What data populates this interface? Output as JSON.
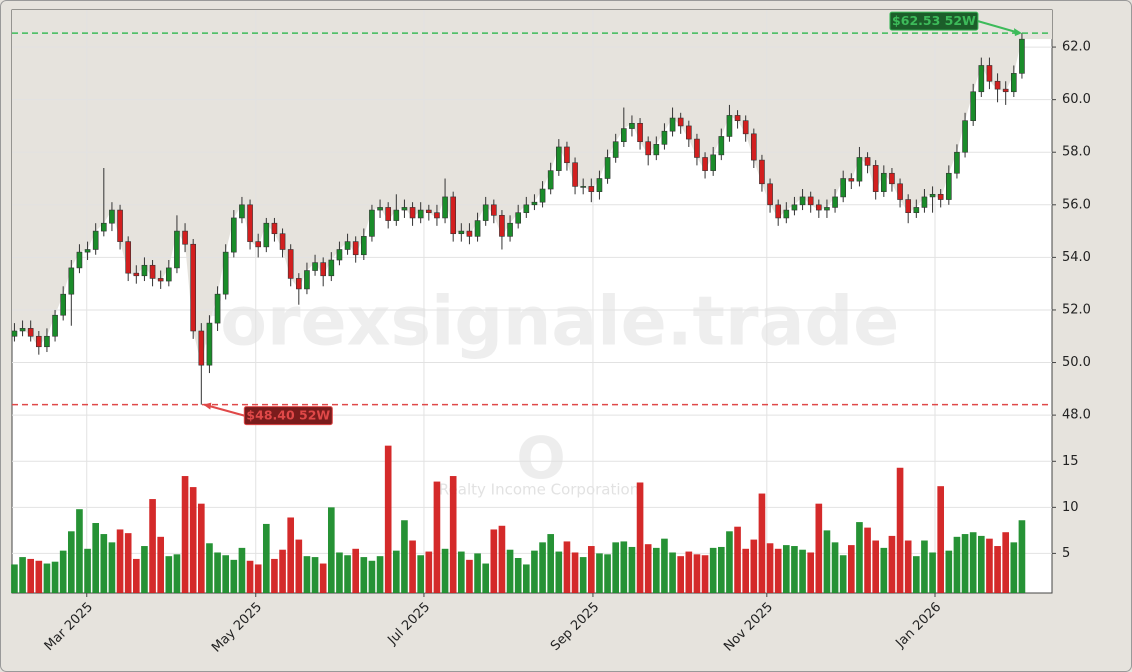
{
  "chart_data": {
    "type": "candlestick",
    "watermark": "forexsignale.trade",
    "ticker": "O",
    "company": "Realty Income Corporation",
    "up_color": "#1a8c2a",
    "down_color": "#d21f1f",
    "open": [
      51.0,
      51.2,
      51.3,
      51.0,
      50.6,
      51.0,
      51.8,
      52.6,
      53.6,
      54.2,
      54.3,
      55.0,
      55.3,
      55.8,
      54.6,
      53.4,
      53.3,
      53.7,
      53.2,
      53.1,
      53.6,
      55.0,
      54.5,
      51.2,
      49.9,
      51.5,
      52.6,
      54.2,
      55.5,
      56.0,
      54.6,
      54.4,
      55.3,
      54.9,
      54.3,
      53.2,
      52.8,
      53.5,
      53.8,
      53.3,
      53.9,
      54.3,
      54.6,
      54.1,
      54.8,
      55.8,
      55.9,
      55.4,
      55.8,
      55.9,
      55.5,
      55.8,
      55.7,
      55.5,
      56.3,
      54.9,
      55.0,
      54.8,
      55.4,
      56.0,
      55.6,
      54.8,
      55.3,
      55.7,
      56.0,
      56.1,
      56.6,
      57.3,
      58.2,
      57.6,
      56.7,
      56.7,
      56.5,
      57.0,
      57.8,
      58.4,
      58.9,
      59.1,
      58.4,
      57.9,
      58.3,
      58.8,
      59.3,
      59.0,
      58.5,
      57.8,
      57.3,
      57.9,
      58.6,
      59.4,
      59.2,
      58.7,
      57.7,
      56.8,
      56.0,
      55.5,
      55.8,
      56.0,
      56.3,
      56.0,
      55.8,
      55.9,
      56.3,
      57.0,
      56.9,
      57.8,
      57.5,
      56.5,
      57.2,
      56.8,
      56.2,
      55.7,
      55.9,
      56.3,
      56.4,
      56.2,
      57.2,
      58.0,
      59.2,
      60.3,
      61.3,
      60.7,
      60.4,
      60.3,
      61.0
    ],
    "high": [
      51.5,
      51.6,
      51.6,
      51.2,
      51.3,
      52.0,
      52.9,
      53.9,
      54.5,
      54.6,
      55.3,
      57.4,
      56.1,
      56.0,
      54.8,
      53.7,
      54.0,
      53.9,
      53.5,
      53.9,
      55.6,
      55.3,
      54.7,
      51.5,
      51.8,
      52.9,
      54.5,
      55.8,
      56.3,
      56.2,
      54.9,
      55.5,
      55.5,
      55.1,
      54.5,
      53.4,
      53.8,
      54.1,
      54.0,
      54.2,
      54.6,
      54.9,
      54.8,
      55.1,
      56.0,
      56.2,
      56.1,
      56.4,
      56.2,
      56.1,
      56.1,
      56.0,
      56.0,
      57.0,
      56.5,
      55.3,
      55.3,
      55.7,
      56.3,
      56.2,
      55.8,
      55.6,
      56.0,
      56.3,
      56.4,
      56.9,
      57.6,
      58.5,
      58.4,
      57.8,
      57.0,
      57.0,
      57.3,
      58.1,
      58.7,
      59.7,
      59.4,
      59.3,
      58.6,
      58.6,
      59.1,
      59.7,
      59.5,
      59.2,
      58.7,
      58.0,
      58.2,
      58.9,
      59.8,
      59.6,
      59.4,
      58.9,
      57.9,
      57.0,
      56.2,
      56.1,
      56.3,
      56.6,
      56.5,
      56.2,
      56.2,
      56.6,
      57.3,
      57.2,
      58.2,
      58.0,
      57.7,
      57.5,
      57.4,
      57.0,
      56.4,
      56.2,
      56.6,
      56.7,
      56.6,
      57.5,
      58.3,
      59.5,
      60.6,
      61.6,
      61.6,
      61.0,
      60.7,
      61.3,
      62.53
    ],
    "low": [
      50.8,
      51.0,
      50.8,
      50.3,
      50.4,
      50.8,
      51.6,
      51.4,
      53.4,
      53.9,
      54.1,
      54.8,
      55.0,
      54.3,
      53.1,
      53.0,
      53.1,
      52.9,
      52.8,
      52.9,
      53.4,
      54.2,
      50.9,
      48.4,
      49.6,
      51.2,
      52.4,
      54.0,
      55.3,
      54.3,
      54.0,
      54.2,
      54.6,
      54.0,
      52.9,
      52.2,
      52.6,
      53.3,
      52.9,
      53.1,
      53.7,
      54.1,
      53.8,
      53.9,
      54.6,
      55.5,
      55.1,
      55.2,
      55.5,
      55.2,
      55.3,
      55.4,
      55.2,
      55.3,
      54.6,
      54.6,
      54.5,
      54.6,
      55.2,
      55.3,
      54.3,
      54.6,
      55.1,
      55.5,
      55.8,
      55.9,
      56.4,
      57.1,
      57.3,
      56.4,
      56.4,
      56.1,
      56.2,
      56.8,
      57.6,
      58.2,
      58.6,
      58.1,
      57.5,
      57.7,
      58.1,
      58.6,
      58.7,
      58.2,
      57.5,
      57.0,
      57.1,
      57.7,
      58.4,
      58.9,
      58.4,
      57.4,
      56.5,
      55.7,
      55.2,
      55.3,
      55.6,
      55.8,
      55.7,
      55.5,
      55.5,
      55.7,
      56.1,
      56.6,
      56.7,
      57.2,
      56.2,
      56.3,
      56.5,
      55.9,
      55.3,
      55.5,
      55.7,
      55.7,
      55.9,
      56.0,
      57.0,
      57.8,
      59.0,
      60.1,
      60.4,
      59.9,
      59.8,
      60.1,
      60.8
    ],
    "close": [
      51.2,
      51.3,
      51.0,
      50.6,
      51.0,
      51.8,
      52.6,
      53.6,
      54.2,
      54.3,
      55.0,
      55.3,
      55.8,
      54.6,
      53.4,
      53.3,
      53.7,
      53.2,
      53.1,
      53.6,
      55.0,
      54.5,
      51.2,
      49.9,
      51.5,
      52.6,
      54.2,
      55.5,
      56.0,
      54.6,
      54.4,
      55.3,
      54.9,
      54.3,
      53.2,
      52.8,
      53.5,
      53.8,
      53.3,
      53.9,
      54.3,
      54.6,
      54.1,
      54.8,
      55.8,
      55.9,
      55.4,
      55.8,
      55.9,
      55.5,
      55.8,
      55.7,
      55.5,
      56.3,
      54.9,
      55.0,
      54.8,
      55.4,
      56.0,
      55.6,
      54.8,
      55.3,
      55.7,
      56.0,
      56.1,
      56.6,
      57.3,
      58.2,
      57.6,
      56.7,
      56.7,
      56.5,
      57.0,
      57.8,
      58.4,
      58.9,
      59.1,
      58.4,
      57.9,
      58.3,
      58.8,
      59.3,
      59.0,
      58.5,
      57.8,
      57.3,
      57.9,
      58.6,
      59.4,
      59.2,
      58.7,
      57.7,
      56.8,
      56.0,
      55.5,
      55.8,
      56.0,
      56.3,
      56.0,
      55.8,
      55.9,
      56.3,
      57.0,
      56.9,
      57.8,
      57.5,
      56.5,
      57.2,
      56.8,
      56.2,
      55.7,
      55.9,
      56.3,
      56.4,
      56.2,
      57.2,
      58.0,
      59.2,
      60.3,
      61.3,
      60.7,
      60.4,
      60.3,
      61.0,
      62.3
    ],
    "volume": [
      3.8,
      4.6,
      4.4,
      4.2,
      3.9,
      4.1,
      5.3,
      7.4,
      9.8,
      5.5,
      8.3,
      7.1,
      6.2,
      7.6,
      7.2,
      4.4,
      5.8,
      10.9,
      6.8,
      4.7,
      4.9,
      13.4,
      12.2,
      10.4,
      6.1,
      5.1,
      4.8,
      4.3,
      5.6,
      4.2,
      3.8,
      8.2,
      4.4,
      5.4,
      8.9,
      6.5,
      4.7,
      4.6,
      3.9,
      10.0,
      5.1,
      4.8,
      5.5,
      4.6,
      4.2,
      4.7,
      16.7,
      5.3,
      8.6,
      6.4,
      4.8,
      5.2,
      12.8,
      5.5,
      13.4,
      5.2,
      4.3,
      5.0,
      3.9,
      7.6,
      8.0,
      5.4,
      4.5,
      3.8,
      5.3,
      6.2,
      7.1,
      5.2,
      6.3,
      5.1,
      4.6,
      5.8,
      5.0,
      4.9,
      6.2,
      6.3,
      5.7,
      12.7,
      6.0,
      5.6,
      6.6,
      5.1,
      4.7,
      5.2,
      4.9,
      4.8,
      5.6,
      5.7,
      7.4,
      7.9,
      5.5,
      6.5,
      11.5,
      6.1,
      5.5,
      5.9,
      5.8,
      5.4,
      5.1,
      10.4,
      7.5,
      6.2,
      4.8,
      5.9,
      8.4,
      7.8,
      6.4,
      5.6,
      6.9,
      14.3,
      6.4,
      4.7,
      6.4,
      5.1,
      12.3,
      5.3,
      6.8,
      7.1,
      7.3,
      6.9,
      6.6,
      5.8,
      7.3,
      6.2,
      8.6
    ],
    "xlim": [
      -0.3,
      127.7
    ],
    "xticks": [
      {
        "value": 8.9,
        "label": "Mar 2025"
      },
      {
        "value": 29.7,
        "label": "May 2025"
      },
      {
        "value": 50.4,
        "label": "Jul 2025"
      },
      {
        "value": 71.2,
        "label": "Sep 2025"
      },
      {
        "value": 92.6,
        "label": "Nov 2025"
      },
      {
        "value": 113.3,
        "label": "Jan 2026"
      }
    ],
    "ylim": [
      47.51,
      63.41
    ],
    "yticks": [
      {
        "value": 48,
        "label": "48.0"
      },
      {
        "value": 50,
        "label": "50.0"
      },
      {
        "value": 52,
        "label": "52.0"
      },
      {
        "value": 54,
        "label": "54.0"
      },
      {
        "value": 56,
        "label": "56.0"
      },
      {
        "value": 58,
        "label": "58.0"
      },
      {
        "value": 60,
        "label": "60.0"
      },
      {
        "value": 62,
        "label": "62.0"
      }
    ],
    "volume_ylim": [
      0.7,
      18.4
    ],
    "volume_yticks": [
      5,
      10,
      15
    ],
    "grid": true,
    "annotations": [
      {
        "text": "$62.53 52W",
        "value": 62.53,
        "index": 124,
        "color": "#3dbb5a",
        "box": "#1c5e2a"
      },
      {
        "text": "$48.40 52W",
        "value": 48.4,
        "index": 23,
        "color": "#e04848",
        "box": "#7a1c1c"
      }
    ]
  }
}
